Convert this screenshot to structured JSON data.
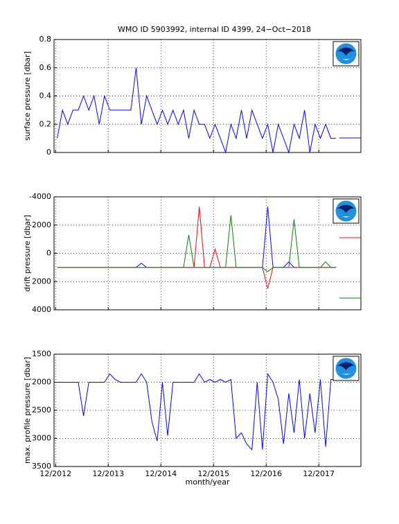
{
  "chart_data": [
    {
      "type": "line",
      "title": "WMO ID 5903992, internal ID 4399, 24−Oct−2018",
      "y_label": "surface pressure [dbar]",
      "x": [
        2012.95,
        2013.05,
        2013.15,
        2013.25,
        2013.35,
        2013.45,
        2013.55,
        2013.65,
        2013.75,
        2013.85,
        2013.95,
        2014.05,
        2014.15,
        2014.25,
        2014.35,
        2014.45,
        2014.55,
        2014.65,
        2014.75,
        2014.85,
        2014.95,
        2015.05,
        2015.15,
        2015.25,
        2015.35,
        2015.45,
        2015.55,
        2015.65,
        2015.75,
        2015.85,
        2015.95,
        2016.05,
        2016.15,
        2016.25,
        2016.35,
        2016.45,
        2016.55,
        2016.65,
        2016.75,
        2016.85,
        2016.95,
        2017.05,
        2017.15,
        2017.25,
        2017.35,
        2017.45,
        2017.55,
        2017.65,
        2017.75,
        2017.85,
        2017.95,
        2018.05,
        2018.15,
        2018.25
      ],
      "series": [
        {
          "color": "#0000ff",
          "values": [
            0.1,
            0.3,
            0.2,
            0.3,
            0.3,
            0.4,
            0.3,
            0.4,
            0.2,
            0.4,
            0.3,
            0.3,
            0.3,
            0.3,
            0.3,
            0.6,
            0.2,
            0.4,
            0.3,
            0.2,
            0.3,
            0.2,
            0.3,
            0.2,
            0.3,
            0.1,
            0.3,
            0.2,
            0.2,
            0.1,
            0.2,
            0.1,
            0,
            0.2,
            0.1,
            0.3,
            0.1,
            0.3,
            0.2,
            0.1,
            0.2,
            0,
            0.2,
            0.1,
            0,
            0.2,
            0.1,
            0.3,
            0,
            0.2,
            0.1,
            0.2,
            0.1,
            0.1
          ]
        }
      ],
      "xlim": [
        2012.89,
        2018.72
      ],
      "xticks": [
        2012.92,
        2013.92,
        2014.92,
        2015.92,
        2016.92,
        2017.92
      ],
      "ylim": [
        0,
        0.8
      ],
      "yticks": [
        0,
        0.2,
        0.4,
        0.6,
        0.8
      ],
      "grid": true
    },
    {
      "type": "line",
      "y_label": "drift pressure [dbar]",
      "y_reverse": true,
      "x": [
        2012.95,
        2013.05,
        2013.15,
        2013.25,
        2013.35,
        2013.45,
        2013.55,
        2013.65,
        2013.75,
        2013.85,
        2013.95,
        2014.05,
        2014.15,
        2014.25,
        2014.35,
        2014.45,
        2014.55,
        2014.65,
        2014.75,
        2014.85,
        2014.95,
        2015.05,
        2015.15,
        2015.25,
        2015.35,
        2015.45,
        2015.55,
        2015.65,
        2015.75,
        2015.85,
        2015.95,
        2016.05,
        2016.15,
        2016.25,
        2016.35,
        2016.45,
        2016.55,
        2016.65,
        2016.75,
        2016.85,
        2016.95,
        2017.05,
        2017.15,
        2017.25,
        2017.35,
        2017.45,
        2017.55,
        2017.65,
        2017.75,
        2017.85,
        2017.95,
        2018.05,
        2018.15,
        2018.25
      ],
      "series": [
        {
          "color": "#0000ff",
          "values": [
            1000,
            1000,
            1000,
            1000,
            1000,
            1000,
            1000,
            1000,
            1000,
            1000,
            1000,
            1000,
            1000,
            1000,
            1000,
            1000,
            700,
            1000,
            1000,
            1000,
            1000,
            1000,
            1000,
            1000,
            1000,
            1000,
            1000,
            1000,
            1000,
            1000,
            1000,
            1000,
            1000,
            1000,
            1000,
            1000,
            1000,
            1000,
            1000,
            1000,
            -3300,
            1000,
            1000,
            1000,
            600,
            1000,
            1000,
            1000,
            1000,
            1000,
            1000,
            1000,
            1000,
            1000
          ]
        },
        {
          "color": "#ff0000",
          "values": [
            1000,
            1000,
            1000,
            1000,
            1000,
            1000,
            1000,
            1000,
            1000,
            1000,
            1000,
            1000,
            1000,
            1000,
            1000,
            1000,
            1000,
            1000,
            1000,
            1000,
            1000,
            1000,
            1000,
            1000,
            1000,
            1000,
            1000,
            -3300,
            1000,
            1000,
            -300,
            1000,
            1000,
            1000,
            1000,
            1000,
            1000,
            1000,
            1000,
            1000,
            2500,
            1000,
            1000,
            1000,
            1000,
            1000,
            1000,
            1000,
            1000,
            1000,
            1000,
            1000,
            1000,
            1000
          ]
        },
        {
          "color": "#008000",
          "values": [
            1000,
            1000,
            1000,
            1000,
            1000,
            1000,
            1000,
            1000,
            1000,
            1000,
            1000,
            1000,
            1000,
            1000,
            1000,
            1000,
            1000,
            1000,
            1000,
            1000,
            1000,
            1000,
            1000,
            1000,
            1000,
            -1300,
            1000,
            1000,
            1000,
            1000,
            1000,
            1000,
            1000,
            -2700,
            1000,
            1000,
            1000,
            1000,
            1000,
            1000,
            1300,
            1000,
            1000,
            1000,
            1000,
            -2400,
            1000,
            1000,
            1000,
            1000,
            1000,
            600,
            1000,
            1000
          ]
        }
      ],
      "xlim": [
        2012.89,
        2018.72
      ],
      "xticks": [
        2012.92,
        2013.92,
        2014.92,
        2015.92,
        2016.92,
        2017.92
      ],
      "ylim": [
        -4000,
        4000
      ],
      "yticks": [
        -4000,
        -2000,
        0,
        2000,
        4000
      ],
      "grid": true
    },
    {
      "type": "line",
      "y_label": "max. profile pressure [dbar]",
      "x_label": "month/year",
      "y_reverse": true,
      "x": [
        2012.95,
        2013.05,
        2013.15,
        2013.25,
        2013.35,
        2013.45,
        2013.55,
        2013.65,
        2013.75,
        2013.85,
        2013.95,
        2014.05,
        2014.15,
        2014.25,
        2014.35,
        2014.45,
        2014.55,
        2014.65,
        2014.75,
        2014.85,
        2014.95,
        2015.05,
        2015.15,
        2015.25,
        2015.35,
        2015.45,
        2015.55,
        2015.65,
        2015.75,
        2015.85,
        2015.95,
        2016.05,
        2016.15,
        2016.25,
        2016.35,
        2016.45,
        2016.55,
        2016.65,
        2016.75,
        2016.85,
        2016.95,
        2017.05,
        2017.15,
        2017.25,
        2017.35,
        2017.45,
        2017.55,
        2017.65,
        2017.75,
        2017.85,
        2017.95,
        2018.05,
        2018.15,
        2018.25
      ],
      "series": [
        {
          "color": "#0000ff",
          "values": [
            2000,
            2000,
            2000,
            2000,
            2000,
            2600,
            2000,
            2000,
            2000,
            2000,
            1850,
            1950,
            2000,
            2000,
            2000,
            2000,
            1850,
            2000,
            2700,
            3050,
            2000,
            2950,
            2000,
            2000,
            2000,
            2000,
            2000,
            1850,
            2000,
            1950,
            2000,
            1950,
            2000,
            1950,
            3000,
            2900,
            3100,
            3200,
            2000,
            3200,
            1850,
            2000,
            2300,
            3100,
            2200,
            2900,
            1950,
            3000,
            2200,
            2900,
            1950,
            3150,
            1950,
            1950
          ]
        }
      ],
      "xlim": [
        2012.89,
        2018.72
      ],
      "xticks": [
        {
          "value": 2012.92,
          "label": "12/2012"
        },
        {
          "value": 2013.92,
          "label": "12/2013"
        },
        {
          "value": 2014.92,
          "label": "12/2014"
        },
        {
          "value": 2015.92,
          "label": "12/2015"
        },
        {
          "value": 2016.92,
          "label": "12/2016"
        },
        {
          "value": 2017.92,
          "label": "12/2017"
        }
      ],
      "ylim": [
        1500,
        3500
      ],
      "yticks": [
        1500,
        2000,
        2500,
        3000,
        3500
      ],
      "grid": true
    }
  ]
}
